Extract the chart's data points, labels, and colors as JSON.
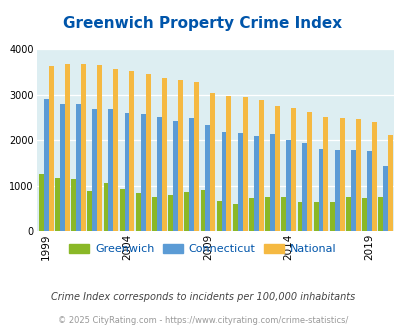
{
  "title": "Greenwich Property Crime Index",
  "years": [
    1999,
    2000,
    2001,
    2002,
    2003,
    2004,
    2005,
    2006,
    2007,
    2008,
    2009,
    2010,
    2011,
    2012,
    2013,
    2014,
    2015,
    2016,
    2017,
    2018,
    2019,
    2020
  ],
  "greenwich": [
    1260,
    1160,
    1150,
    890,
    1050,
    930,
    830,
    750,
    800,
    860,
    910,
    670,
    600,
    730,
    750,
    760,
    650,
    650,
    630,
    760,
    720,
    750
  ],
  "connecticut": [
    2920,
    2800,
    2790,
    2680,
    2680,
    2600,
    2570,
    2510,
    2420,
    2490,
    2330,
    2180,
    2150,
    2100,
    2130,
    2000,
    1950,
    1800,
    1790,
    1780,
    1760,
    1430
  ],
  "national": [
    3630,
    3670,
    3690,
    3650,
    3570,
    3520,
    3450,
    3380,
    3330,
    3290,
    3050,
    2980,
    2950,
    2890,
    2750,
    2710,
    2620,
    2510,
    2490,
    2470,
    2400,
    2110
  ],
  "greenwich_color": "#8ab827",
  "connecticut_color": "#5b9bd5",
  "national_color": "#f5b942",
  "bg_color": "#ddeef2",
  "title_color": "#0055aa",
  "ylim": [
    0,
    4000
  ],
  "yticks": [
    0,
    1000,
    2000,
    3000,
    4000
  ],
  "xlabel_years": [
    1999,
    2004,
    2009,
    2014,
    2019
  ],
  "subtitle": "Crime Index corresponds to incidents per 100,000 inhabitants",
  "footer": "© 2025 CityRating.com - https://www.cityrating.com/crime-statistics/",
  "bar_width": 0.3,
  "legend_labels": [
    "Greenwich",
    "Connecticut",
    "National"
  ],
  "subtitle_color": "#444444",
  "footer_color": "#999999"
}
